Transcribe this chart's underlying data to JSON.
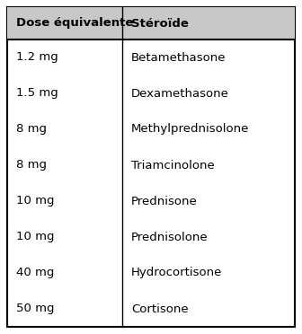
{
  "col1_header": "Dose équivalente",
  "col2_header": "Stéroïde",
  "rows": [
    [
      "1.2 mg",
      "Betamethasone"
    ],
    [
      "1.5 mg",
      "Dexamethasone"
    ],
    [
      "8 mg",
      "Methylprednisolone"
    ],
    [
      "8 mg",
      "Triamcinolone"
    ],
    [
      "10 mg",
      "Prednisone"
    ],
    [
      "10 mg",
      "Prednisolone"
    ],
    [
      "40 mg",
      "Hydrocortisone"
    ],
    [
      "50 mg",
      "Cortisone"
    ]
  ],
  "bg_color": "#ffffff",
  "border_color": "#000000",
  "header_bg": "#c8c8c8",
  "text_color": "#000000",
  "header_fontsize": 9.5,
  "cell_fontsize": 9.5,
  "fig_width": 3.36,
  "fig_height": 3.72,
  "dpi": 100
}
